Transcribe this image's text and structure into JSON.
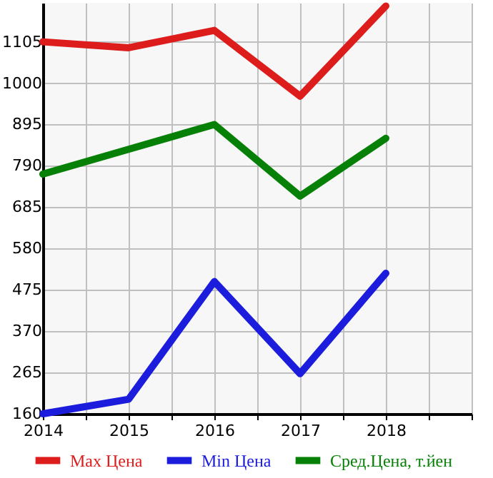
{
  "chart_data": {
    "type": "line",
    "x": [
      2014,
      2015,
      2016,
      2017,
      2018
    ],
    "series": [
      {
        "name": "Max Цена",
        "color": "#dd1c1c",
        "values": [
          1105,
          1090,
          1134,
          967,
          1196
        ]
      },
      {
        "name": "Min Цена",
        "color": "#1c1cdd",
        "values": [
          160,
          197,
          496,
          262,
          517
        ]
      },
      {
        "name": "Сред.Цена, т.йен",
        "color": "#068006",
        "values": [
          769,
          832,
          895,
          713,
          860
        ]
      }
    ],
    "xlim": [
      2014,
      2019
    ],
    "xticks": [
      2014,
      {
        "value": 2014.5,
        "label": null
      },
      2015,
      {
        "value": 2015.5,
        "label": null
      },
      2016,
      {
        "value": 2016.5,
        "label": null
      },
      2017,
      {
        "value": 2017.5,
        "label": null
      },
      2018,
      {
        "value": 2018.5,
        "label": null
      },
      {
        "value": 2019,
        "label": null
      }
    ],
    "ylim": [
      160,
      1204
    ],
    "yticks": [
      160,
      265,
      370,
      475,
      580,
      685,
      790,
      895,
      1000,
      1105
    ],
    "grid": true,
    "legend": "bottom",
    "marker": "none",
    "line_style": "solid"
  }
}
